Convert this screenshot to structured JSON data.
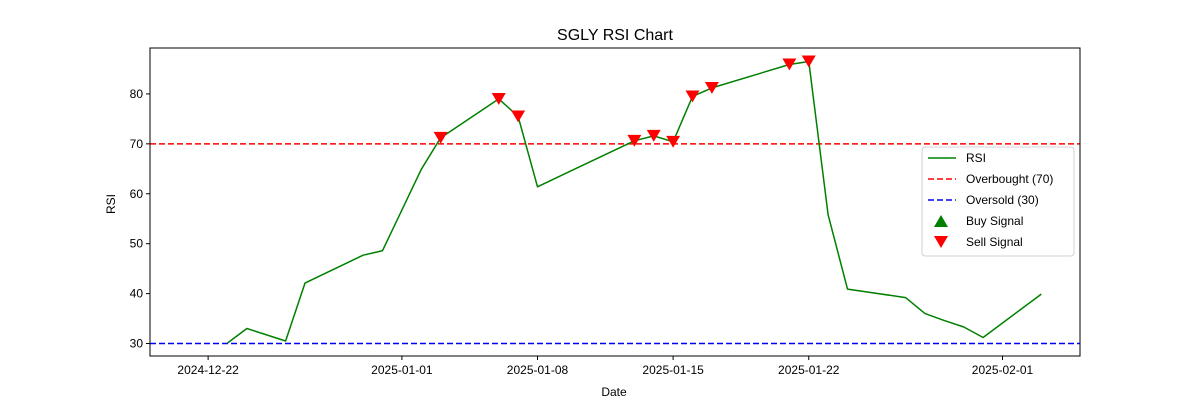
{
  "chart_data": {
    "type": "line",
    "title": "SGLY RSI Chart",
    "xlabel": "Date",
    "ylabel": "RSI",
    "xlim": [
      "2024-12-19",
      "2025-02-05"
    ],
    "ylim": [
      27.5,
      89.2
    ],
    "x_ticks": [
      "2024-12-22",
      "2025-01-01",
      "2025-01-08",
      "2025-01-15",
      "2025-01-22",
      "2025-02-01"
    ],
    "y_ticks": [
      30,
      40,
      50,
      60,
      70,
      80
    ],
    "grid": false,
    "legend_position": "center-right",
    "series": [
      {
        "name": "RSI",
        "color": "#008000",
        "x": [
          "2024-12-23",
          "2024-12-24",
          "2024-12-26",
          "2024-12-27",
          "2024-12-30",
          "2024-12-31",
          "2025-01-02",
          "2025-01-03",
          "2025-01-06",
          "2025-01-07",
          "2025-01-08",
          "2025-01-10",
          "2025-01-13",
          "2025-01-14",
          "2025-01-15",
          "2025-01-16",
          "2025-01-17",
          "2025-01-21",
          "2025-01-22",
          "2025-01-23",
          "2025-01-24",
          "2025-01-27",
          "2025-01-28",
          "2025-01-29",
          "2025-01-30",
          "2025-01-31",
          "2025-02-03"
        ],
        "values": [
          30.1,
          33.0,
          30.5,
          42.1,
          47.7,
          48.6,
          64.9,
          71.2,
          79.0,
          75.5,
          61.4,
          65.1,
          70.6,
          71.6,
          70.4,
          79.5,
          81.2,
          85.9,
          86.5,
          55.8,
          40.9,
          39.2,
          36.0,
          34.6,
          33.3,
          31.2,
          39.9
        ]
      },
      {
        "name": "Overbought (70)",
        "value": 70,
        "color": "#ff0000",
        "style": "dashed"
      },
      {
        "name": "Oversold (30)",
        "value": 30,
        "color": "#0000ff",
        "style": "dashed"
      },
      {
        "name": "Buy Signal",
        "color": "#008000",
        "marker": "triangle-up",
        "x": [],
        "values": []
      },
      {
        "name": "Sell Signal",
        "color": "#ff0000",
        "marker": "triangle-down",
        "x": [
          "2025-01-03",
          "2025-01-06",
          "2025-01-07",
          "2025-01-13",
          "2025-01-14",
          "2025-01-15",
          "2025-01-16",
          "2025-01-17",
          "2025-01-21",
          "2025-01-22"
        ],
        "values": [
          71.2,
          79.0,
          75.5,
          70.6,
          71.6,
          70.4,
          79.5,
          81.2,
          85.9,
          86.5
        ]
      }
    ]
  }
}
